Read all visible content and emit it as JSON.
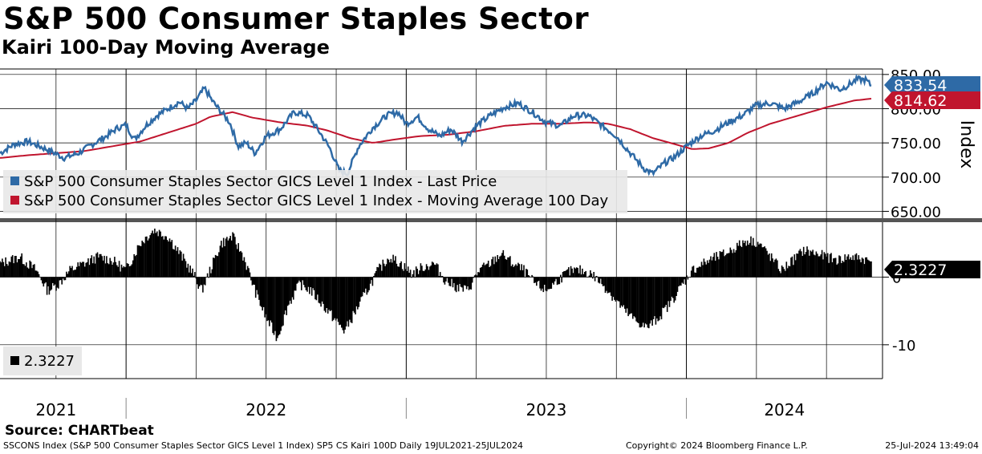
{
  "header": {
    "title": "S&P 500 Consumer Staples Sector",
    "subtitle": "Kairi 100-Day Moving Average"
  },
  "source": "Source: CHARTbeat",
  "footer": {
    "left": "SSCONS Index (S&P 500 Consumer Staples Sector GICS Level 1 Index) SP5 CS Kairi 100D  Daily 19JUL2021-25JUL2024",
    "middle": "Copyright© 2024 Bloomberg Finance L.P.",
    "right": "25-Jul-2024 13:49:04"
  },
  "colors": {
    "price": "#2e6aa6",
    "ma": "#c0152e",
    "kairi": "#000000",
    "grid": "#000000"
  },
  "chart_data": [
    {
      "type": "line",
      "title": "S&P 500 Consumer Staples Sector",
      "ylabel": "Index",
      "ylim": [
        640,
        858
      ],
      "yticks": [
        "650.00",
        "700.00",
        "750.00",
        "800.00",
        "850.00"
      ],
      "ytick_values": [
        650,
        700,
        750,
        800,
        850
      ],
      "years": [
        "2021",
        "2022",
        "2023",
        "2024"
      ],
      "date_range": [
        "19JUL2021",
        "25JUL2024"
      ],
      "series": [
        {
          "name": "S&P 500 Consumer Staples Sector GICS Level 1 Index - Last Price",
          "last_value": "833.54",
          "points": [
            [
              2021.55,
              735
            ],
            [
              2021.6,
              748
            ],
            [
              2021.65,
              752
            ],
            [
              2021.72,
              740
            ],
            [
              2021.78,
              728
            ],
            [
              2021.83,
              735
            ],
            [
              2021.88,
              748
            ],
            [
              2021.93,
              760
            ],
            [
              2021.97,
              772
            ],
            [
              2022.0,
              776
            ],
            [
              2022.03,
              755
            ],
            [
              2022.07,
              775
            ],
            [
              2022.11,
              790
            ],
            [
              2022.15,
              800
            ],
            [
              2022.19,
              810
            ],
            [
              2022.22,
              800
            ],
            [
              2022.25,
              812
            ],
            [
              2022.28,
              830
            ],
            [
              2022.31,
              810
            ],
            [
              2022.34,
              795
            ],
            [
              2022.37,
              780
            ],
            [
              2022.4,
              745
            ],
            [
              2022.43,
              750
            ],
            [
              2022.46,
              735
            ],
            [
              2022.5,
              760
            ],
            [
              2022.55,
              770
            ],
            [
              2022.6,
              795
            ],
            [
              2022.65,
              790
            ],
            [
              2022.7,
              760
            ],
            [
              2022.73,
              740
            ],
            [
              2022.76,
              710
            ],
            [
              2022.79,
              705
            ],
            [
              2022.83,
              745
            ],
            [
              2022.88,
              772
            ],
            [
              2022.93,
              790
            ],
            [
              2022.97,
              795
            ],
            [
              2023.0,
              778
            ],
            [
              2023.04,
              788
            ],
            [
              2023.08,
              770
            ],
            [
              2023.12,
              760
            ],
            [
              2023.16,
              770
            ],
            [
              2023.2,
              752
            ],
            [
              2023.25,
              775
            ],
            [
              2023.3,
              790
            ],
            [
              2023.35,
              802
            ],
            [
              2023.4,
              808
            ],
            [
              2023.45,
              795
            ],
            [
              2023.5,
              780
            ],
            [
              2023.55,
              775
            ],
            [
              2023.6,
              790
            ],
            [
              2023.65,
              790
            ],
            [
              2023.7,
              775
            ],
            [
              2023.75,
              760
            ],
            [
              2023.8,
              735
            ],
            [
              2023.85,
              712
            ],
            [
              2023.88,
              705
            ],
            [
              2023.92,
              720
            ],
            [
              2023.96,
              730
            ],
            [
              2024.0,
              745
            ],
            [
              2024.05,
              760
            ],
            [
              2024.1,
              768
            ],
            [
              2024.15,
              780
            ],
            [
              2024.2,
              790
            ],
            [
              2024.25,
              805
            ],
            [
              2024.3,
              808
            ],
            [
              2024.35,
              800
            ],
            [
              2024.4,
              810
            ],
            [
              2024.45,
              822
            ],
            [
              2024.5,
              838
            ],
            [
              2024.55,
              828
            ],
            [
              2024.58,
              835
            ],
            [
              2024.61,
              843
            ],
            [
              2024.64,
              842
            ],
            [
              2024.66,
              833.54
            ]
          ]
        },
        {
          "name": "S&P 500 Consumer Staples Sector GICS Level 1 Index - Moving Average 100 Day",
          "last_value": "814.62",
          "points": [
            [
              2021.55,
              728
            ],
            [
              2021.65,
              732
            ],
            [
              2021.75,
              735
            ],
            [
              2021.85,
              738
            ],
            [
              2021.95,
              745
            ],
            [
              2022.05,
              752
            ],
            [
              2022.15,
              765
            ],
            [
              2022.25,
              778
            ],
            [
              2022.3,
              788
            ],
            [
              2022.38,
              795
            ],
            [
              2022.45,
              787
            ],
            [
              2022.55,
              780
            ],
            [
              2022.65,
              775
            ],
            [
              2022.72,
              768
            ],
            [
              2022.8,
              757
            ],
            [
              2022.88,
              750
            ],
            [
              2022.96,
              755
            ],
            [
              2023.05,
              760
            ],
            [
              2023.15,
              762
            ],
            [
              2023.25,
              767
            ],
            [
              2023.35,
              775
            ],
            [
              2023.45,
              778
            ],
            [
              2023.55,
              778
            ],
            [
              2023.65,
              780
            ],
            [
              2023.72,
              778
            ],
            [
              2023.8,
              770
            ],
            [
              2023.88,
              757
            ],
            [
              2023.96,
              748
            ],
            [
              2024.02,
              741
            ],
            [
              2024.08,
              742
            ],
            [
              2024.15,
              750
            ],
            [
              2024.22,
              765
            ],
            [
              2024.3,
              778
            ],
            [
              2024.4,
              790
            ],
            [
              2024.5,
              802
            ],
            [
              2024.6,
              812
            ],
            [
              2024.66,
              814.62
            ]
          ]
        }
      ]
    },
    {
      "type": "bar",
      "title": "Kairi 100-Day Moving Average",
      "ylim": [
        -15,
        8
      ],
      "yticks": [
        "0",
        "-10"
      ],
      "ytick_values": [
        0,
        -10
      ],
      "series": [
        {
          "name": "Kairi 100D",
          "last_value": "2.3227",
          "legend_label": "2.3227",
          "points": [
            [
              2021.55,
              2
            ],
            [
              2021.62,
              3
            ],
            [
              2021.68,
              1
            ],
            [
              2021.72,
              -2
            ],
            [
              2021.76,
              -1
            ],
            [
              2021.8,
              1
            ],
            [
              2021.85,
              2
            ],
            [
              2021.9,
              3
            ],
            [
              2021.95,
              2.5
            ],
            [
              2022.0,
              1
            ],
            [
              2022.05,
              5
            ],
            [
              2022.1,
              7
            ],
            [
              2022.15,
              6
            ],
            [
              2022.2,
              3
            ],
            [
              2022.24,
              0.5
            ],
            [
              2022.27,
              -2
            ],
            [
              2022.3,
              1
            ],
            [
              2022.34,
              5
            ],
            [
              2022.38,
              6
            ],
            [
              2022.42,
              3
            ],
            [
              2022.46,
              -2
            ],
            [
              2022.5,
              -6
            ],
            [
              2022.54,
              -9
            ],
            [
              2022.58,
              -4
            ],
            [
              2022.62,
              -1
            ],
            [
              2022.66,
              -2
            ],
            [
              2022.7,
              -4
            ],
            [
              2022.74,
              -6
            ],
            [
              2022.78,
              -8
            ],
            [
              2022.82,
              -5
            ],
            [
              2022.86,
              -2
            ],
            [
              2022.9,
              1
            ],
            [
              2022.94,
              3
            ],
            [
              2022.98,
              2
            ],
            [
              2023.02,
              0.5
            ],
            [
              2023.06,
              1.5
            ],
            [
              2023.1,
              2
            ],
            [
              2023.14,
              -0.5
            ],
            [
              2023.18,
              -1.5
            ],
            [
              2023.22,
              -2
            ],
            [
              2023.26,
              1
            ],
            [
              2023.3,
              2
            ],
            [
              2023.34,
              3.5
            ],
            [
              2023.38,
              2
            ],
            [
              2023.42,
              1
            ],
            [
              2023.46,
              -1
            ],
            [
              2023.5,
              -2
            ],
            [
              2023.54,
              -0.5
            ],
            [
              2023.58,
              0.8
            ],
            [
              2023.62,
              1
            ],
            [
              2023.66,
              0.5
            ],
            [
              2023.7,
              -1
            ],
            [
              2023.74,
              -3
            ],
            [
              2023.78,
              -5
            ],
            [
              2023.82,
              -6.5
            ],
            [
              2023.86,
              -7.5
            ],
            [
              2023.9,
              -6
            ],
            [
              2023.94,
              -4
            ],
            [
              2023.98,
              -1.5
            ],
            [
              2024.02,
              1
            ],
            [
              2024.06,
              2
            ],
            [
              2024.1,
              2.8
            ],
            [
              2024.14,
              3.5
            ],
            [
              2024.18,
              4.5
            ],
            [
              2024.22,
              5.5
            ],
            [
              2024.26,
              5
            ],
            [
              2024.3,
              3
            ],
            [
              2024.34,
              1
            ],
            [
              2024.38,
              2.5
            ],
            [
              2024.42,
              4
            ],
            [
              2024.46,
              3.5
            ],
            [
              2024.5,
              3
            ],
            [
              2024.54,
              2.5
            ],
            [
              2024.58,
              3
            ],
            [
              2024.62,
              2.8
            ],
            [
              2024.66,
              2.3227
            ]
          ]
        }
      ]
    }
  ]
}
